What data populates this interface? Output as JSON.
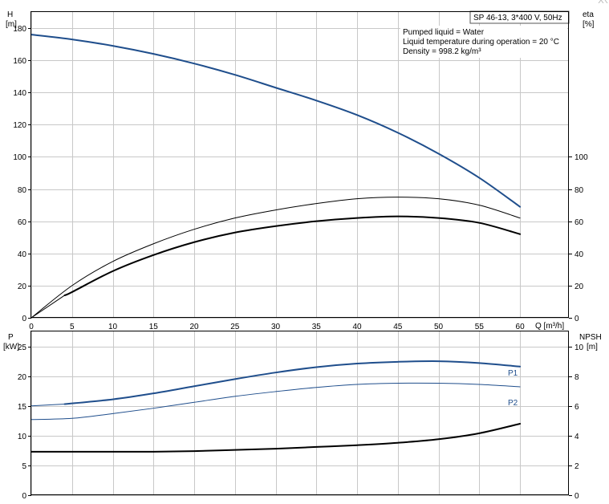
{
  "chart_data": [
    {
      "type": "line",
      "title_box": "SP 46-13, 3*400 V, 50Hz",
      "info": [
        "Pumped liquid = Water",
        "Liquid temperature during operation = 20 °C",
        "Density = 998.2 kg/m³"
      ],
      "left_axis": {
        "title": "H",
        "unit": "[m]"
      },
      "right_axis": {
        "title": "eta",
        "unit": "[%]"
      },
      "xlabel": "Q [m³/h]",
      "xlim": [
        0,
        66
      ],
      "ylim": [
        0,
        190
      ],
      "x_ticks": [
        0,
        5,
        10,
        15,
        20,
        25,
        30,
        35,
        40,
        45,
        50,
        55,
        60
      ],
      "left_ticks": [
        0,
        20,
        40,
        60,
        80,
        100,
        120,
        140,
        160,
        180
      ],
      "right_ticks": [
        0,
        20,
        40,
        60,
        80,
        100
      ],
      "grid": true,
      "series": [
        {
          "key": "H",
          "color": "#1f4e8c",
          "width": 2,
          "x": [
            0,
            5,
            10,
            15,
            20,
            25,
            30,
            35,
            40,
            45,
            50,
            55,
            60
          ],
          "values": [
            176,
            173,
            169,
            164,
            158,
            151,
            143,
            135,
            126,
            115,
            102,
            87,
            69
          ]
        },
        {
          "key": "eta-thin",
          "color": "#000000",
          "width": 1,
          "x": [
            0,
            5,
            10,
            15,
            20,
            25,
            30,
            35,
            40,
            45,
            50,
            55,
            60
          ],
          "values": [
            0,
            20,
            35,
            46,
            55,
            62,
            67,
            71,
            74,
            75,
            74,
            70,
            62
          ]
        },
        {
          "key": "eta-thick",
          "color": "#000000",
          "width": 2,
          "x": [
            4.1,
            5,
            10,
            15,
            20,
            25,
            30,
            35,
            40,
            45,
            50,
            55,
            60
          ],
          "values": [
            14,
            16,
            29,
            39,
            47,
            53,
            57,
            60,
            62,
            63,
            62,
            59,
            52
          ]
        },
        {
          "key": "eta-start",
          "color": "#000000",
          "width": 1,
          "x": [
            0,
            4.1
          ],
          "values": [
            0,
            14
          ]
        }
      ]
    },
    {
      "type": "line",
      "left_axis": {
        "title": "P",
        "unit": "[kW]"
      },
      "right_axis": {
        "title": "NPSH",
        "unit": "[m]"
      },
      "xlim": [
        0,
        66
      ],
      "ylim": [
        0,
        27.5
      ],
      "right_scale": 2.5,
      "left_ticks": [
        0,
        5,
        10,
        15,
        20,
        25
      ],
      "right_ticks": [
        0,
        2,
        4,
        6,
        8,
        10
      ],
      "grid": true,
      "series": [
        {
          "name": "P1",
          "color": "#1f4e8c",
          "width": 2,
          "x": [
            4.1,
            10,
            15,
            20,
            25,
            30,
            35,
            40,
            45,
            50,
            55,
            60
          ],
          "values": [
            15.3,
            16.1,
            17.1,
            18.3,
            19.5,
            20.6,
            21.5,
            22.1,
            22.4,
            22.5,
            22.2,
            21.6
          ]
        },
        {
          "key": "P1-start",
          "color": "#1f4e8c",
          "width": 1,
          "x": [
            0,
            4.1
          ],
          "values": [
            15.0,
            15.3
          ]
        },
        {
          "name": "P2",
          "color": "#1f4e8c",
          "width": 1,
          "x": [
            0,
            5,
            10,
            15,
            20,
            25,
            30,
            35,
            40,
            45,
            50,
            55,
            60
          ],
          "values": [
            12.7,
            12.9,
            13.7,
            14.6,
            15.6,
            16.6,
            17.4,
            18.1,
            18.6,
            18.8,
            18.8,
            18.6,
            18.2
          ]
        },
        {
          "key": "NPSH",
          "color": "#000000",
          "width": 2,
          "x": [
            0,
            5,
            10,
            15,
            20,
            25,
            30,
            35,
            40,
            45,
            50,
            55,
            60
          ],
          "values": [
            7.3,
            7.3,
            7.3,
            7.3,
            7.4,
            7.6,
            7.8,
            8.1,
            8.4,
            8.8,
            9.4,
            10.4,
            12.0
          ]
        }
      ]
    }
  ],
  "colors": {
    "accent": "#1f4e8c",
    "grid": "#c8c8c8",
    "frame": "#000000"
  }
}
